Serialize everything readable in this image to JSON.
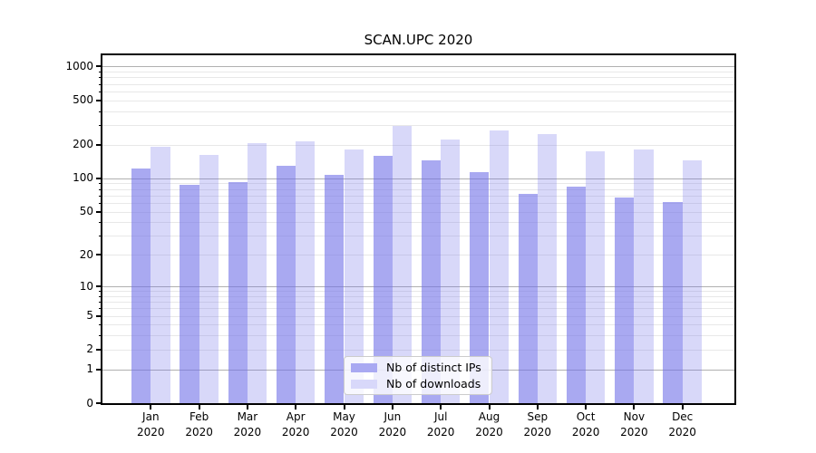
{
  "chart_data": {
    "type": "bar",
    "title": "SCAN.UPC 2020",
    "categories": [
      "Jan 2020",
      "Feb 2020",
      "Mar 2020",
      "Apr 2020",
      "May 2020",
      "Jun 2020",
      "Jul 2020",
      "Aug 2020",
      "Sep 2020",
      "Oct 2020",
      "Nov 2020",
      "Dec 2020"
    ],
    "series": [
      {
        "name": "Nb of distinct IPs",
        "values": [
          122,
          88,
          92,
          129,
          107,
          159,
          144,
          114,
          73,
          84,
          67,
          61
        ]
      },
      {
        "name": "Nb of downloads",
        "values": [
          191,
          162,
          207,
          213,
          180,
          295,
          222,
          267,
          250,
          174,
          182,
          146
        ]
      }
    ],
    "xlabel": "",
    "ylabel": "",
    "yscale": "log1p",
    "ylim": [
      0,
      1260
    ],
    "y_ticks": [
      0,
      1,
      2,
      5,
      10,
      20,
      50,
      100,
      200,
      500,
      1000
    ],
    "major_grid_values": [
      1,
      10,
      100,
      1000
    ],
    "grid": true,
    "legend_position": "lower-center"
  },
  "colors": {
    "ips_bar": "rgba(112,112,232,0.60)",
    "downloads_bar": "rgba(112,112,232,0.27)",
    "ips_swatch": "#a9a9f2",
    "downloads_swatch": "#d8d8fa",
    "major_grid": "#b0b0b0",
    "minor_grid": "#e8e8e8",
    "spine": "#000000",
    "tick": "#000000",
    "legend_border": "#cccccc",
    "legend_bg": "rgba(255,255,255,0.8)"
  }
}
